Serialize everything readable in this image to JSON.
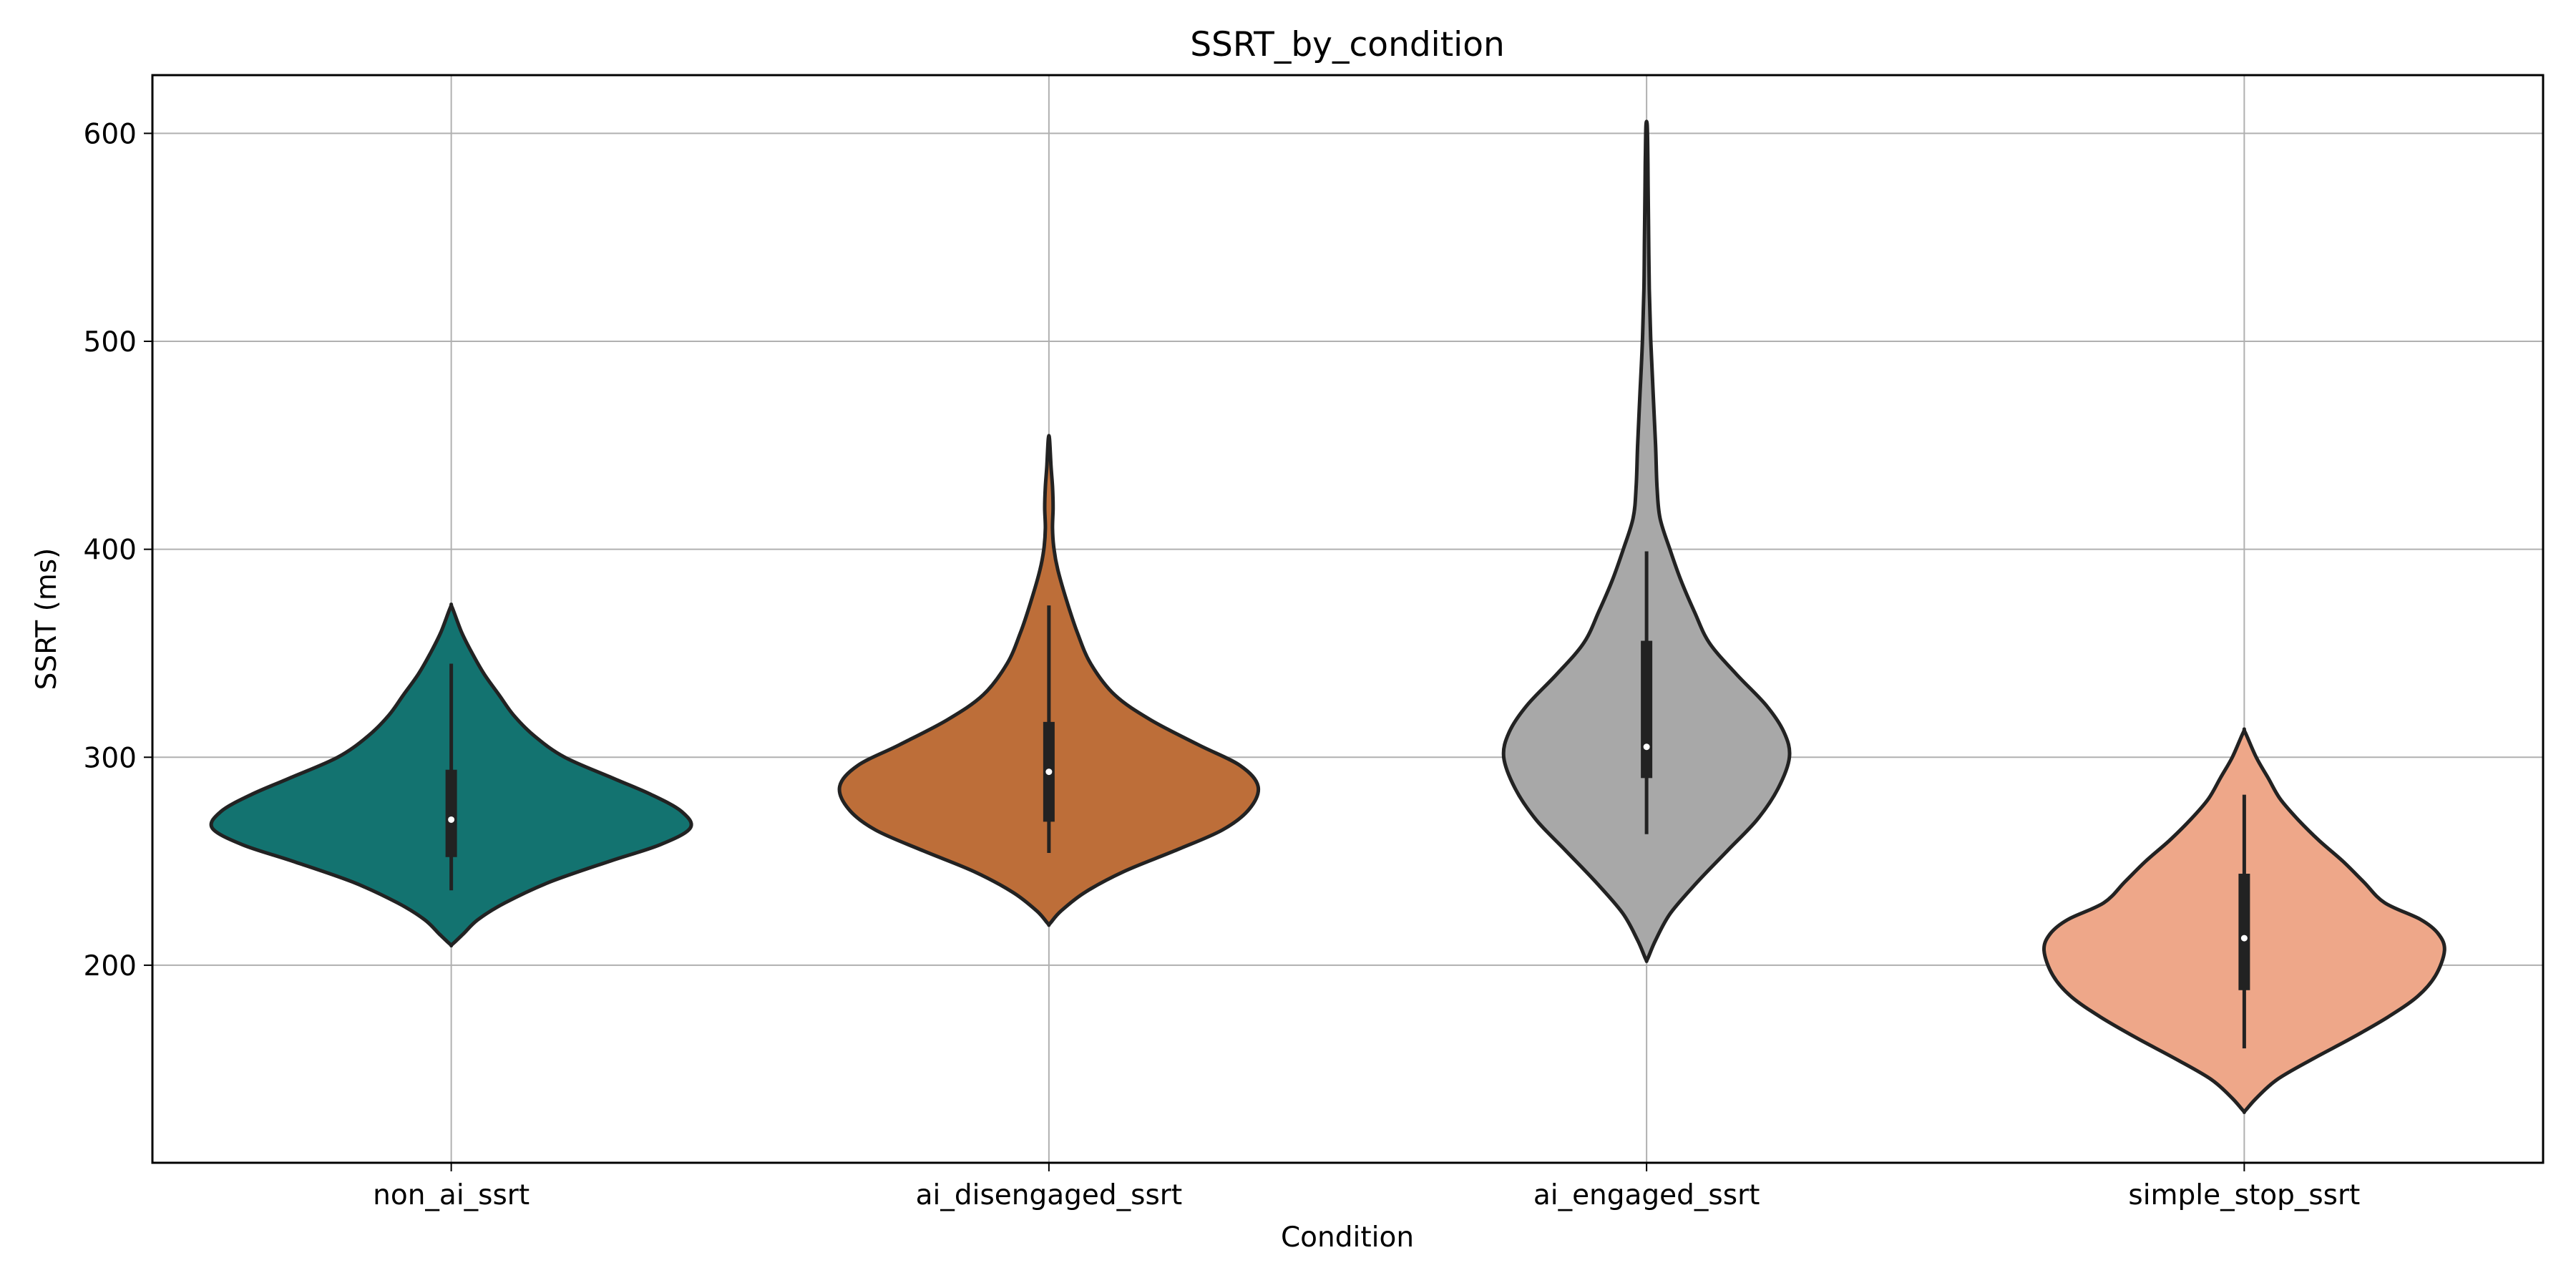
{
  "chart_data": {
    "type": "violin",
    "title": "SSRT_by_condition",
    "xlabel": "Condition",
    "ylabel": "SSRT (ms)",
    "ylim": [
      105,
      628
    ],
    "yticks": [
      200,
      300,
      400,
      500,
      600
    ],
    "grid": true,
    "categories": [
      "non_ai_ssrt",
      "ai_disengaged_ssrt",
      "ai_engaged_ssrt",
      "simple_stop_ssrt"
    ],
    "colors": [
      "#137370",
      "#bd6e39",
      "#a8a8a8",
      "#eea789"
    ],
    "outline_color": "#222222",
    "violins": [
      {
        "category": "non_ai_ssrt",
        "min": 210,
        "max": 372,
        "q1": 252,
        "median": 270,
        "q3": 294,
        "whisker_low": 236,
        "whisker_high": 345,
        "profile": [
          [
            210,
            3
          ],
          [
            215,
            40
          ],
          [
            222,
            90
          ],
          [
            230,
            180
          ],
          [
            240,
            330
          ],
          [
            250,
            530
          ],
          [
            258,
            700
          ],
          [
            266,
            800
          ],
          [
            274,
            770
          ],
          [
            282,
            670
          ],
          [
            290,
            540
          ],
          [
            300,
            380
          ],
          [
            310,
            280
          ],
          [
            320,
            210
          ],
          [
            330,
            160
          ],
          [
            340,
            110
          ],
          [
            350,
            70
          ],
          [
            360,
            35
          ],
          [
            372,
            3
          ]
        ]
      },
      {
        "category": "ai_disengaged_ssrt",
        "min": 220,
        "max": 453,
        "q1": 269,
        "median": 293,
        "q3": 317,
        "whisker_low": 254,
        "whisker_high": 373,
        "profile": [
          [
            220,
            3
          ],
          [
            226,
            40
          ],
          [
            235,
            120
          ],
          [
            245,
            250
          ],
          [
            255,
            420
          ],
          [
            265,
            580
          ],
          [
            275,
            670
          ],
          [
            286,
            700
          ],
          [
            296,
            640
          ],
          [
            306,
            500
          ],
          [
            318,
            340
          ],
          [
            330,
            220
          ],
          [
            345,
            140
          ],
          [
            360,
            95
          ],
          [
            375,
            60
          ],
          [
            390,
            30
          ],
          [
            400,
            17
          ],
          [
            410,
            12
          ],
          [
            420,
            14
          ],
          [
            430,
            12
          ],
          [
            440,
            7
          ],
          [
            453,
            2
          ]
        ]
      },
      {
        "category": "ai_engaged_ssrt",
        "min": 203,
        "max": 604,
        "q1": 290,
        "median": 305,
        "q3": 356,
        "whisker_low": 263,
        "whisker_high": 399,
        "profile": [
          [
            203,
            3
          ],
          [
            212,
            30
          ],
          [
            225,
            80
          ],
          [
            240,
            170
          ],
          [
            255,
            270
          ],
          [
            270,
            370
          ],
          [
            285,
            440
          ],
          [
            300,
            478
          ],
          [
            312,
            460
          ],
          [
            325,
            400
          ],
          [
            340,
            300
          ],
          [
            355,
            210
          ],
          [
            370,
            160
          ],
          [
            385,
            115
          ],
          [
            400,
            78
          ],
          [
            415,
            45
          ],
          [
            430,
            35
          ],
          [
            450,
            30
          ],
          [
            475,
            22
          ],
          [
            500,
            14
          ],
          [
            525,
            9
          ],
          [
            550,
            7
          ],
          [
            575,
            5
          ],
          [
            590,
            4
          ],
          [
            604,
            2
          ]
        ]
      },
      {
        "category": "simple_stop_ssrt",
        "min": 130,
        "max": 312,
        "q1": 188,
        "median": 213,
        "q3": 244,
        "whisker_low": 160,
        "whisker_high": 282,
        "profile": [
          [
            130,
            3
          ],
          [
            136,
            40
          ],
          [
            145,
            110
          ],
          [
            155,
            230
          ],
          [
            165,
            360
          ],
          [
            175,
            480
          ],
          [
            185,
            580
          ],
          [
            195,
            640
          ],
          [
            207,
            670
          ],
          [
            215,
            650
          ],
          [
            222,
            590
          ],
          [
            230,
            470
          ],
          [
            240,
            400
          ],
          [
            250,
            330
          ],
          [
            260,
            250
          ],
          [
            270,
            180
          ],
          [
            280,
            120
          ],
          [
            290,
            80
          ],
          [
            300,
            40
          ],
          [
            312,
            3
          ]
        ]
      }
    ]
  }
}
